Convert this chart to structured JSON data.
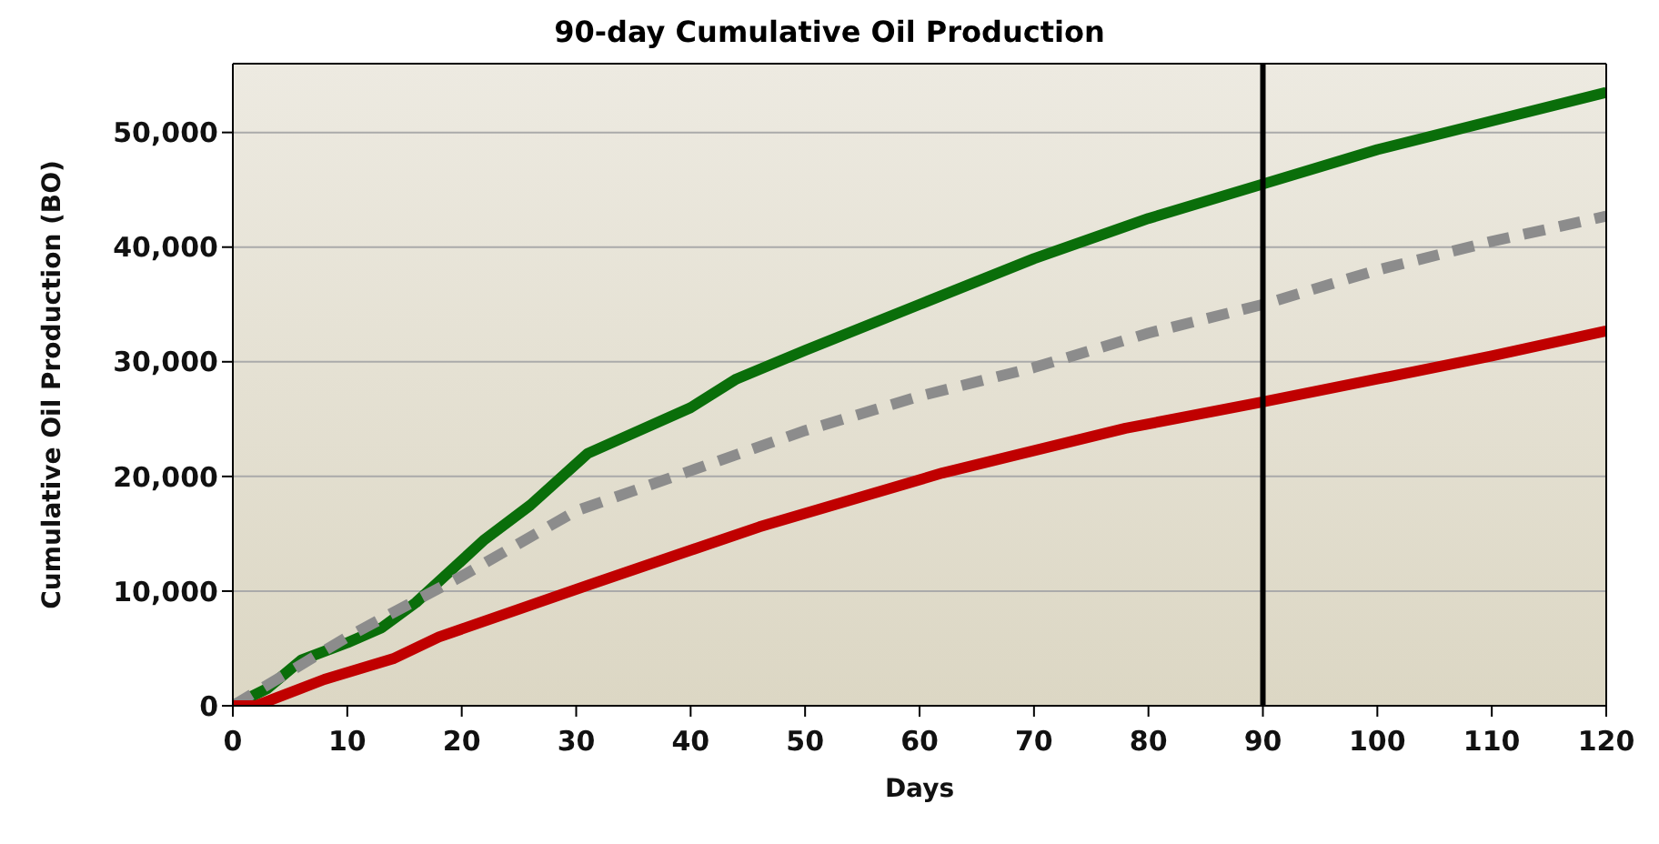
{
  "chart_data": {
    "type": "line",
    "title": "90-day Cumulative Oil Production",
    "xlabel": "Days",
    "ylabel": "Cumulative Oil Production (BO)",
    "xlim": [
      0,
      120
    ],
    "xticks": [
      0,
      10,
      20,
      30,
      40,
      50,
      60,
      70,
      80,
      90,
      100,
      110,
      120
    ],
    "ylim": [
      0,
      56000
    ],
    "yticks": [
      {
        "value": 0,
        "label": "0"
      },
      {
        "value": 10000,
        "label": "10,000"
      },
      {
        "value": 20000,
        "label": "20,000"
      },
      {
        "value": 30000,
        "label": "30,000"
      },
      {
        "value": 40000,
        "label": "40,000"
      },
      {
        "value": 50000,
        "label": "50,000"
      }
    ],
    "grid": "y",
    "marker": "none",
    "ref_lines": [
      {
        "axis": "x",
        "value": 90,
        "color": "#000000"
      }
    ],
    "series": [
      {
        "color": "#0a6e0a",
        "line_style": "solid",
        "x": [
          0,
          3,
          6,
          10,
          13,
          16,
          22,
          26,
          31,
          40,
          44,
          50,
          60,
          70,
          80,
          90,
          100,
          110,
          120
        ],
        "values": [
          0,
          1500,
          4000,
          5500,
          6800,
          9000,
          14500,
          17500,
          22000,
          26000,
          28500,
          31000,
          35000,
          39000,
          42500,
          45500,
          48500,
          51000,
          53500
        ]
      },
      {
        "color": "#8c8c8c",
        "line_style": "dashed",
        "x": [
          0,
          10,
          20,
          30,
          40,
          50,
          60,
          70,
          80,
          90,
          100,
          110,
          120
        ],
        "values": [
          0,
          6000,
          11300,
          17000,
          20500,
          24000,
          27000,
          29500,
          32500,
          35000,
          38000,
          40500,
          42700
        ]
      },
      {
        "color": "#c00000",
        "line_style": "solid",
        "x": [
          0,
          2,
          8,
          14,
          18,
          31,
          46,
          62,
          78,
          90,
          100,
          110,
          120
        ],
        "values": [
          0,
          0,
          2300,
          4100,
          6000,
          10500,
          15600,
          20300,
          24200,
          26500,
          28500,
          30500,
          32700
        ]
      }
    ]
  }
}
